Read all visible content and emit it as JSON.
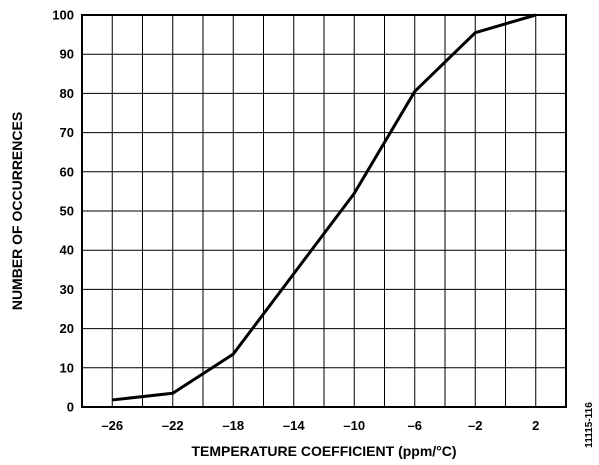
{
  "chart_data": {
    "type": "line",
    "title": "",
    "xlabel": "TEMPERATURE COEFFICIENT (ppm/°C)",
    "ylabel": "NUMBER OF OCCURRENCES",
    "xlim": [
      -28,
      4
    ],
    "ylim": [
      0,
      100
    ],
    "xticks": [
      -28,
      -26,
      -24,
      -22,
      -20,
      -18,
      -16,
      -14,
      -12,
      -10,
      -8,
      -6,
      -4,
      -2,
      0,
      2,
      4
    ],
    "xtick_labels": [
      "-26",
      "-22",
      "-18",
      "-14",
      "-10",
      "-6",
      "-2",
      "2"
    ],
    "xtick_label_values": [
      -26,
      -22,
      -18,
      -14,
      -10,
      -6,
      -2,
      2
    ],
    "yticks": [
      0,
      10,
      20,
      30,
      40,
      50,
      60,
      70,
      80,
      90,
      100
    ],
    "ytick_labels": [
      "0",
      "10",
      "20",
      "30",
      "40",
      "50",
      "60",
      "70",
      "80",
      "90",
      "100"
    ],
    "grid": true,
    "series": [
      {
        "color": "#000000",
        "x": [
          -26,
          -22,
          -18,
          -14,
          -10,
          -6,
          -2,
          2
        ],
        "y": [
          1.8,
          3.5,
          13.5,
          34,
          54.5,
          80.5,
          95.5,
          100
        ]
      }
    ],
    "annotation": "11115-116"
  }
}
